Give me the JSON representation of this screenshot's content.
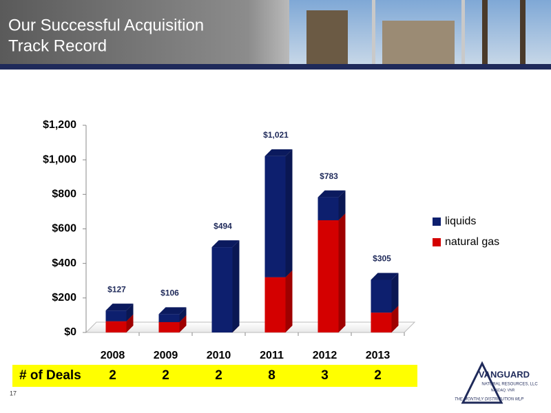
{
  "slide": {
    "title_lines": [
      "Our Successful Acquisition",
      "Track Record"
    ],
    "page_number": "17",
    "logo": {
      "name": "VANGUARD",
      "subtitle": "NATURAL RESOURCES, LLC",
      "ticker": "NASDAQ: VNR",
      "tagline": "THE MONTHLY DISTRIBUTION MLP"
    }
  },
  "chart_data": {
    "type": "bar",
    "stacked": true,
    "categories": [
      "2008",
      "2009",
      "2010",
      "2011",
      "2012",
      "2013"
    ],
    "series": [
      {
        "name": "liquids",
        "color": "#0d1f6e",
        "values": [
          62,
          46,
          494,
          701,
          133,
          190
        ]
      },
      {
        "name": "natural gas",
        "color": "#d40000",
        "values": [
          65,
          60,
          0,
          320,
          650,
          115
        ]
      }
    ],
    "totals": [
      127,
      106,
      494,
      1021,
      783,
      305
    ],
    "total_labels": [
      "$127",
      "$106",
      "$494",
      "$1,021",
      "$783",
      "$305"
    ],
    "ylim": [
      0,
      1200
    ],
    "yticks": [
      {
        "value": 0,
        "label": "$0"
      },
      {
        "value": 200,
        "label": "$200"
      },
      {
        "value": 400,
        "label": "$400"
      },
      {
        "value": 600,
        "label": "$600"
      },
      {
        "value": 800,
        "label": "$800"
      },
      {
        "value": 1000,
        "label": "$1,000"
      },
      {
        "value": 1200,
        "label": "$1,200"
      }
    ],
    "legend": "right",
    "deals": {
      "label": "# of Deals",
      "values": [
        2,
        2,
        2,
        8,
        3,
        2
      ]
    }
  }
}
